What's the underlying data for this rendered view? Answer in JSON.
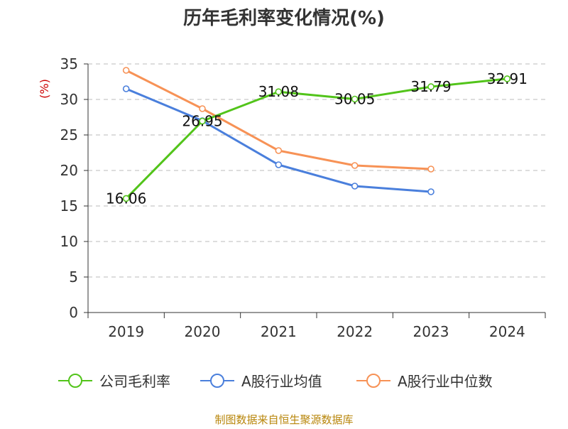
{
  "colors": {
    "text": "#333333",
    "axis": "#333333",
    "grid": "#bbbbbb",
    "ylabel": "#cc0000",
    "source": "#b8860b"
  },
  "chart_data": {
    "type": "line",
    "title": "历年毛利率变化情况(%)",
    "ylabel": "(%)",
    "categories": [
      "2019",
      "2020",
      "2021",
      "2022",
      "2023",
      "2024"
    ],
    "ylim": [
      0,
      35
    ],
    "yticks": [
      0,
      5,
      10,
      15,
      20,
      25,
      30,
      35
    ],
    "grid": true,
    "legend_position": "bottom",
    "series": [
      {
        "name": "公司毛利率",
        "color": "#52c41a",
        "values": [
          16.06,
          26.95,
          31.08,
          30.05,
          31.79,
          32.91
        ],
        "labels": [
          "16.06",
          "26.95",
          "31.08",
          "30.05",
          "31.79",
          "32.91"
        ]
      },
      {
        "name": "A股行业均值",
        "color": "#4a7fdc",
        "values": [
          31.5,
          27.0,
          20.8,
          17.8,
          17.0,
          null
        ],
        "labels": null
      },
      {
        "name": "A股行业中位数",
        "color": "#f79256",
        "values": [
          34.1,
          28.7,
          22.8,
          20.7,
          20.2,
          null
        ],
        "labels": null
      }
    ],
    "source": "制图数据来自恒生聚源数据库"
  }
}
